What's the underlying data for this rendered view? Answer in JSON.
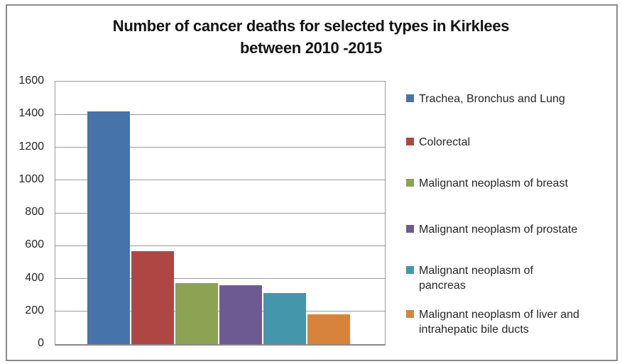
{
  "window": {
    "background_color": "#FFFFFF",
    "border_color": "#8A8A8A"
  },
  "chart_data": {
    "type": "bar",
    "title": "Number of cancer deaths for selected types in Kirklees between 2010 -2015",
    "title_lines": [
      "Number of cancer deaths for selected types in Kirklees",
      "between 2010 -2015"
    ],
    "xlabel": "",
    "ylabel": "",
    "ylim": [
      0,
      1600
    ],
    "ytick_interval": 200,
    "yticks": [
      0,
      200,
      400,
      600,
      800,
      1000,
      1200,
      1400,
      1600
    ],
    "grid": true,
    "gridline_color": "#9C9C9C",
    "legend_position": "right",
    "categories": [
      "Trachea, Bronchus and Lung",
      "Colorectal",
      "Malignant neoplasm of breast",
      "Malignant neoplasm of prostate",
      "Malignant neoplasm of pancreas",
      "Malignant neoplasm of liver and intrahepatic bile ducts"
    ],
    "series": [
      {
        "name": "Trachea, Bronchus and Lung",
        "value": 1420,
        "color": "#4673AA",
        "legend_lines": [
          "Trachea, Bronchus and Lung"
        ]
      },
      {
        "name": "Colorectal",
        "value": 568,
        "color": "#AE4744",
        "legend_lines": [
          "Colorectal"
        ]
      },
      {
        "name": "Malignant neoplasm of breast",
        "value": 370,
        "color": "#8CA353",
        "legend_lines": [
          "Malignant neoplasm of breast"
        ]
      },
      {
        "name": "Malignant neoplasm of prostate",
        "value": 357,
        "color": "#6E5A93",
        "legend_lines": [
          "Malignant neoplasm of prostate"
        ]
      },
      {
        "name": "Malignant neoplasm of pancreas",
        "value": 313,
        "color": "#4496AB",
        "legend_lines": [
          "Malignant neoplasm of",
          "pancreas"
        ]
      },
      {
        "name": "Malignant neoplasm of liver and intrahepatic bile ducts",
        "value": 180,
        "color": "#D8833C",
        "legend_lines": [
          "Malignant neoplasm of liver and",
          "intrahepatic bile ducts"
        ]
      }
    ]
  }
}
